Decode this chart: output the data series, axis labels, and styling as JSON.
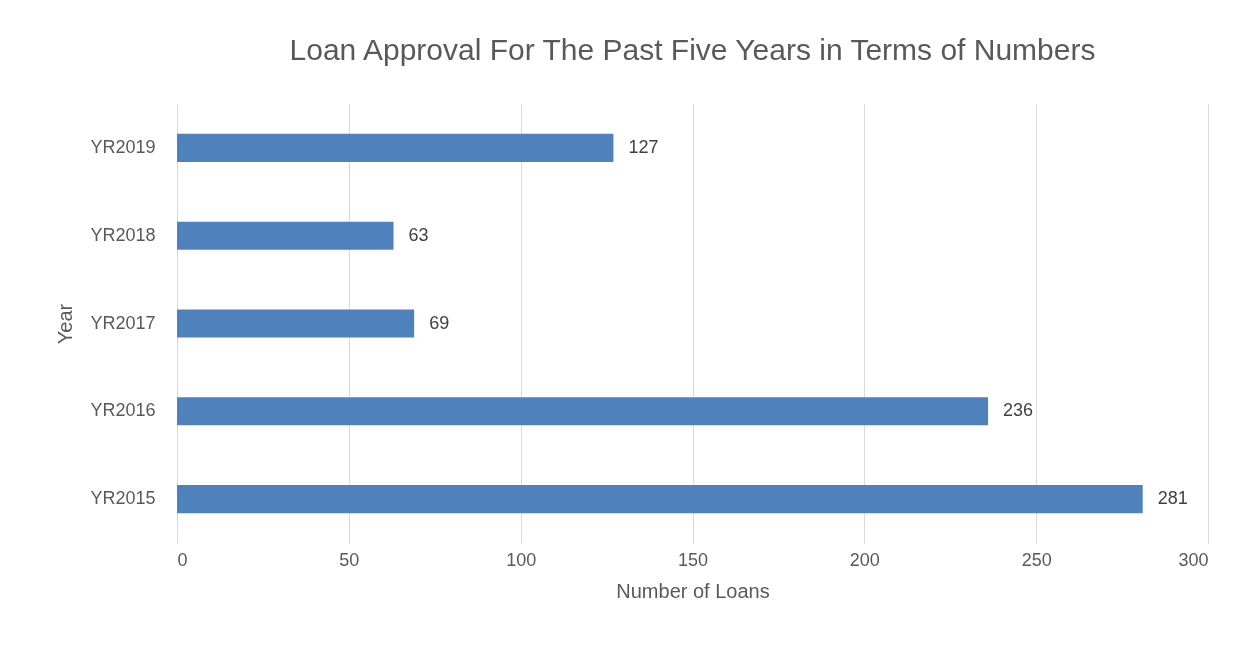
{
  "chart_data": {
    "type": "bar",
    "orientation": "horizontal",
    "title": "Loan Approval For The Past Five Years in Terms of Numbers",
    "xlabel": "Number of Loans",
    "ylabel": "Year",
    "categories": [
      "YR2019",
      "YR2018",
      "YR2017",
      "YR2016",
      "YR2015"
    ],
    "values": [
      127,
      63,
      69,
      236,
      281
    ],
    "color": "#4f81bd",
    "xlim": [
      0,
      300
    ],
    "xticks": [
      0,
      50,
      100,
      150,
      200,
      250,
      300
    ],
    "grid": "x",
    "data_labels": true
  }
}
